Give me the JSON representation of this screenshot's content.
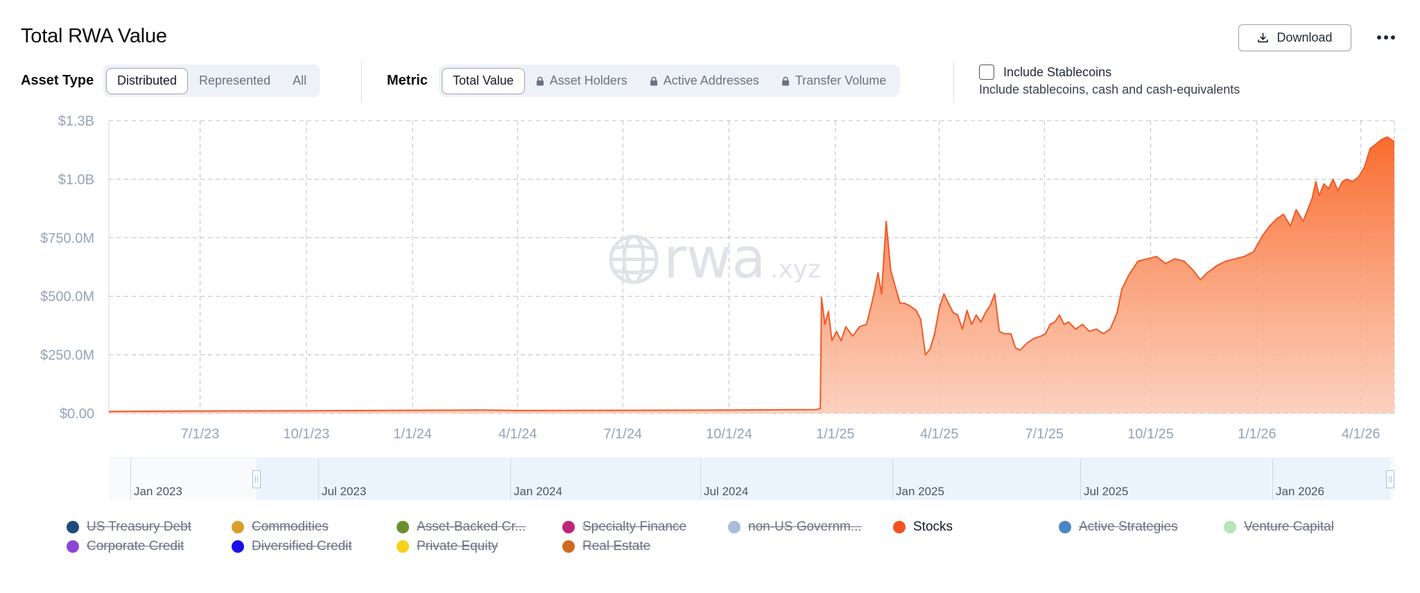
{
  "header": {
    "title": "Total RWA Value",
    "download_label": "Download"
  },
  "controls": {
    "asset_type_label": "Asset Type",
    "asset_type_options": [
      "Distributed",
      "Represented",
      "All"
    ],
    "asset_type_selected": "Distributed",
    "metric_label": "Metric",
    "metric_options": [
      "Total Value",
      "Asset Holders",
      "Active Addresses",
      "Transfer Volume"
    ],
    "metric_locked": [
      false,
      true,
      true,
      true
    ],
    "metric_selected": "Total Value",
    "stablecoins": {
      "label": "Include Stablecoins",
      "description": "Include stablecoins, cash and cash-equivalents",
      "checked": false
    }
  },
  "watermark": {
    "text": "rwa",
    "suffix": ".xyz"
  },
  "chart_data": {
    "type": "area",
    "y_tick_labels": [
      "$0.00",
      "$250.0M",
      "$500.0M",
      "$750.0M",
      "$1.0B",
      "$1.3B"
    ],
    "y_tick_values": [
      0,
      250,
      500,
      750,
      1000,
      1250
    ],
    "y_unit": "millions USD",
    "ylim": [
      0,
      1250
    ],
    "x_tick_labels": [
      "7/1/23",
      "10/1/23",
      "1/1/24",
      "4/1/24",
      "7/1/24",
      "10/1/24",
      "1/1/25",
      "4/1/25",
      "7/1/25",
      "10/1/25",
      "1/1/26",
      "4/1/26"
    ],
    "xlim": [
      "2023-04-13",
      "2026-04-30"
    ],
    "grid": true,
    "color": "#f05a28",
    "series": [
      {
        "points": [
          [
            "2023-04-13",
            8
          ],
          [
            "2023-07-01",
            10
          ],
          [
            "2023-10-01",
            11
          ],
          [
            "2024-01-01",
            13
          ],
          [
            "2024-03-01",
            14
          ],
          [
            "2024-04-01",
            12
          ],
          [
            "2024-07-01",
            13
          ],
          [
            "2024-10-01",
            14
          ],
          [
            "2024-12-15",
            16
          ],
          [
            "2024-12-19",
            20
          ],
          [
            "2024-12-20",
            495
          ],
          [
            "2024-12-23",
            380
          ],
          [
            "2024-12-26",
            435
          ],
          [
            "2024-12-29",
            310
          ],
          [
            "2025-01-02",
            350
          ],
          [
            "2025-01-06",
            310
          ],
          [
            "2025-01-10",
            370
          ],
          [
            "2025-01-16",
            330
          ],
          [
            "2025-01-22",
            370
          ],
          [
            "2025-01-28",
            380
          ],
          [
            "2025-02-03",
            500
          ],
          [
            "2025-02-07",
            600
          ],
          [
            "2025-02-10",
            510
          ],
          [
            "2025-02-14",
            820
          ],
          [
            "2025-02-18",
            610
          ],
          [
            "2025-02-22",
            540
          ],
          [
            "2025-02-26",
            470
          ],
          [
            "2025-03-02",
            470
          ],
          [
            "2025-03-06",
            460
          ],
          [
            "2025-03-12",
            440
          ],
          [
            "2025-03-16",
            400
          ],
          [
            "2025-03-20",
            250
          ],
          [
            "2025-03-24",
            275
          ],
          [
            "2025-03-28",
            340
          ],
          [
            "2025-04-01",
            450
          ],
          [
            "2025-04-05",
            510
          ],
          [
            "2025-04-09",
            470
          ],
          [
            "2025-04-13",
            430
          ],
          [
            "2025-04-17",
            420
          ],
          [
            "2025-04-21",
            360
          ],
          [
            "2025-04-25",
            440
          ],
          [
            "2025-04-29",
            380
          ],
          [
            "2025-05-03",
            420
          ],
          [
            "2025-05-07",
            390
          ],
          [
            "2025-05-11",
            430
          ],
          [
            "2025-05-15",
            460
          ],
          [
            "2025-05-19",
            510
          ],
          [
            "2025-05-23",
            350
          ],
          [
            "2025-05-27",
            340
          ],
          [
            "2025-06-02",
            340
          ],
          [
            "2025-06-06",
            280
          ],
          [
            "2025-06-10",
            270
          ],
          [
            "2025-06-16",
            300
          ],
          [
            "2025-06-22",
            320
          ],
          [
            "2025-06-28",
            330
          ],
          [
            "2025-07-02",
            340
          ],
          [
            "2025-07-06",
            380
          ],
          [
            "2025-07-10",
            390
          ],
          [
            "2025-07-14",
            420
          ],
          [
            "2025-07-18",
            380
          ],
          [
            "2025-07-22",
            390
          ],
          [
            "2025-07-28",
            360
          ],
          [
            "2025-08-03",
            380
          ],
          [
            "2025-08-09",
            350
          ],
          [
            "2025-08-15",
            360
          ],
          [
            "2025-08-21",
            340
          ],
          [
            "2025-08-27",
            360
          ],
          [
            "2025-09-02",
            430
          ],
          [
            "2025-09-06",
            530
          ],
          [
            "2025-09-12",
            590
          ],
          [
            "2025-09-20",
            650
          ],
          [
            "2025-09-28",
            660
          ],
          [
            "2025-10-06",
            670
          ],
          [
            "2025-10-14",
            640
          ],
          [
            "2025-10-22",
            660
          ],
          [
            "2025-10-30",
            650
          ],
          [
            "2025-11-07",
            610
          ],
          [
            "2025-11-13",
            570
          ],
          [
            "2025-11-19",
            600
          ],
          [
            "2025-11-27",
            630
          ],
          [
            "2025-12-05",
            650
          ],
          [
            "2025-12-13",
            660
          ],
          [
            "2025-12-21",
            670
          ],
          [
            "2025-12-29",
            690
          ],
          [
            "2026-01-06",
            760
          ],
          [
            "2026-01-12",
            800
          ],
          [
            "2026-01-18",
            830
          ],
          [
            "2026-01-24",
            850
          ],
          [
            "2026-01-30",
            800
          ],
          [
            "2026-02-04",
            870
          ],
          [
            "2026-02-10",
            820
          ],
          [
            "2026-02-14",
            870
          ],
          [
            "2026-02-18",
            920
          ],
          [
            "2026-02-21",
            990
          ],
          [
            "2026-02-24",
            930
          ],
          [
            "2026-02-28",
            980
          ],
          [
            "2026-03-04",
            960
          ],
          [
            "2026-03-08",
            1000
          ],
          [
            "2026-03-12",
            950
          ],
          [
            "2026-03-16",
            990
          ],
          [
            "2026-03-20",
            1000
          ],
          [
            "2026-03-25",
            990
          ],
          [
            "2026-03-30",
            1010
          ],
          [
            "2026-04-04",
            1050
          ],
          [
            "2026-04-09",
            1130
          ],
          [
            "2026-04-14",
            1150
          ],
          [
            "2026-04-19",
            1170
          ],
          [
            "2026-04-24",
            1180
          ],
          [
            "2026-04-30",
            1160
          ]
        ]
      }
    ]
  },
  "brush": {
    "labels": [
      "Jan 2023",
      "Jul 2023",
      "Jan 2024",
      "Jul 2024",
      "Jan 2025",
      "Jul 2025",
      "Jan 2026"
    ]
  },
  "legend": [
    {
      "name": "US Treasury Debt",
      "color": "#1e4b7a",
      "active": false
    },
    {
      "name": "Commodities",
      "color": "#d99e2b",
      "active": false
    },
    {
      "name": "Asset-Backed Cr...",
      "color": "#6b8e2e",
      "active": false
    },
    {
      "name": "Specialty Finance",
      "color": "#c0247a",
      "active": false
    },
    {
      "name": "non-US Governm...",
      "color": "#a9bcd9",
      "active": false
    },
    {
      "name": "Stocks",
      "color": "#f4511e",
      "active": true
    },
    {
      "name": "Active Strategies",
      "color": "#4a86c5",
      "active": false
    },
    {
      "name": "Venture Capital",
      "color": "#b7e4b9",
      "active": false
    },
    {
      "name": "Corporate Credit",
      "color": "#8e44d8",
      "active": false
    },
    {
      "name": "Diversified Credit",
      "color": "#1a10e8",
      "active": false
    },
    {
      "name": "Private Equity",
      "color": "#f5d31b",
      "active": false
    },
    {
      "name": "Real Estate",
      "color": "#d2691e",
      "active": false
    }
  ]
}
